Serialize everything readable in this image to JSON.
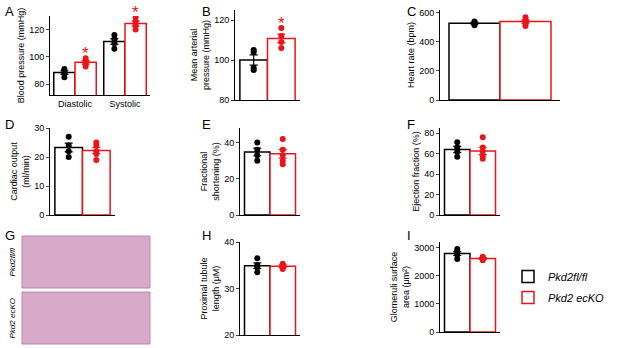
{
  "chart_data": [
    {
      "type": "bar",
      "title": "A",
      "ylabel": "Blood pressure (mmHg)",
      "categories": [
        "Diastolic",
        "Systolic"
      ],
      "ylim": [
        72,
        130
      ],
      "yticks": [
        80,
        100,
        120
      ],
      "legend": "bottom right",
      "series": [
        {
          "name": "Pkd2fl/fl",
          "color": "#000000",
          "values": [
            88.5,
            111.3
          ],
          "errors": [
            1.3,
            2.1
          ],
          "points": [
            [
              85,
              88,
              90,
              91
            ],
            [
              106,
              110,
              113,
              116
            ]
          ]
        },
        {
          "name": "Pkd2 ecKO",
          "color": "#e8161b",
          "values": [
            96,
            124.5
          ],
          "errors": [
            1.3,
            1.9
          ],
          "points": [
            [
              93,
              95,
              97,
              99
            ],
            [
              120,
              123,
              126,
              129
            ]
          ],
          "significance": [
            "*",
            "*"
          ]
        }
      ]
    },
    {
      "type": "bar",
      "title": "B",
      "ylabel": "Mean arterial pressure (mmHg)",
      "categories": [
        null
      ],
      "ylim": [
        80,
        125
      ],
      "yticks": [
        80,
        100,
        120
      ],
      "series": [
        {
          "name": "Pkd2fl/fl",
          "color": "#000000",
          "values": [
            100
          ],
          "errors": [
            2.6
          ],
          "points": [
            [
              95,
              96,
              104,
              105
            ]
          ]
        },
        {
          "name": "Pkd2 ecKO",
          "color": "#e8161b",
          "values": [
            110.8
          ],
          "errors": [
            2.1
          ],
          "points": [
            [
              106,
              109,
              112,
              116
            ]
          ],
          "significance": [
            "*"
          ]
        }
      ]
    },
    {
      "type": "bar",
      "title": "C",
      "ylabel": "Heart rate (bpm)",
      "categories": [
        null
      ],
      "ylim": [
        0,
        620
      ],
      "yticks": [
        0,
        200,
        400,
        600
      ],
      "series": [
        {
          "name": "Pkd2fl/fl",
          "color": "#000000",
          "values": [
            529
          ],
          "errors": [
            6
          ],
          "points": [
            [
              515,
              525,
              535,
              540
            ]
          ]
        },
        {
          "name": "Pkd2 ecKO",
          "color": "#e8161b",
          "values": [
            540
          ],
          "errors": [
            10
          ],
          "points": [
            [
              510,
              525,
              540,
              555,
              570
            ]
          ]
        }
      ]
    },
    {
      "type": "bar",
      "title": "D",
      "ylabel": "Cardiac output (ml/min)",
      "categories": [
        null
      ],
      "ylim": [
        0,
        30
      ],
      "yticks": [
        0,
        10,
        20,
        30
      ],
      "series": [
        {
          "name": "Pkd2fl/fl",
          "color": "#000000",
          "values": [
            23.3
          ],
          "errors": [
            1.5
          ],
          "points": [
            [
              20,
              22,
              24,
              27
            ]
          ]
        },
        {
          "name": "Pkd2 ecKO",
          "color": "#e8161b",
          "values": [
            22.2
          ],
          "errors": [
            1
          ],
          "points": [
            [
              19,
              21,
              22,
              24,
              25
            ]
          ]
        }
      ]
    },
    {
      "type": "bar",
      "title": "E",
      "ylabel": "Fractional shortening (%)",
      "categories": [
        null
      ],
      "ylim": [
        0,
        48
      ],
      "yticks": [
        0,
        20,
        40
      ],
      "series": [
        {
          "name": "Pkd2fl/fl",
          "color": "#000000",
          "values": [
            34.8
          ],
          "errors": [
            2.1
          ],
          "points": [
            [
              30,
              33,
              36,
              40
            ]
          ]
        },
        {
          "name": "Pkd2 ecKO",
          "color": "#e8161b",
          "values": [
            33.8
          ],
          "errors": [
            2.4
          ],
          "points": [
            [
              28,
              30,
              33,
              36,
              42
            ]
          ]
        }
      ]
    },
    {
      "type": "bar",
      "title": "F",
      "ylabel": "Ejection fraction (%)",
      "categories": [
        null
      ],
      "ylim": [
        0,
        85
      ],
      "yticks": [
        0,
        20,
        40,
        60,
        80
      ],
      "series": [
        {
          "name": "Pkd2fl/fl",
          "color": "#000000",
          "values": [
            64
          ],
          "errors": [
            3
          ],
          "points": [
            [
              57,
              62,
              66,
              71
            ]
          ]
        },
        {
          "name": "Pkd2 ecKO",
          "color": "#e8161b",
          "values": [
            62.6
          ],
          "errors": [
            3.6
          ],
          "points": [
            [
              55,
              58,
              62,
              66,
              76
            ]
          ]
        }
      ]
    },
    {
      "type": "image",
      "title": "G",
      "labels": [
        "Pkd2fl/fl",
        "Pkd2 ecKO"
      ]
    },
    {
      "type": "bar",
      "title": "H",
      "ylabel": "Proximal tubule length (μM)",
      "categories": [
        null
      ],
      "ylim": [
        20,
        40
      ],
      "yticks": [
        20,
        30,
        40
      ],
      "series": [
        {
          "name": "Pkd2fl/fl",
          "color": "#000000",
          "values": [
            34.9
          ],
          "errors": [
            0.6
          ],
          "points": [
            [
              33.5,
              34.5,
              35,
              36.5
            ]
          ]
        },
        {
          "name": "Pkd2 ecKO",
          "color": "#e8161b",
          "values": [
            34.8
          ],
          "errors": [
            0.3
          ],
          "points": [
            [
              34.2,
              34.6,
              35,
              35.3
            ]
          ]
        }
      ]
    },
    {
      "type": "bar",
      "title": "I",
      "ylabel": "Glomeruli surface area (μm²)",
      "categories": [
        null
      ],
      "ylim": [
        0,
        3200
      ],
      "yticks": [
        0,
        1000,
        2000,
        3000
      ],
      "series": [
        {
          "name": "Pkd2fl/fl",
          "color": "#000000",
          "values": [
            2790
          ],
          "errors": [
            70
          ],
          "points": [
            [
              2600,
              2750,
              2850,
              2950
            ]
          ]
        },
        {
          "name": "Pkd2 ecKO",
          "color": "#e8161b",
          "values": [
            2612
          ],
          "errors": [
            30
          ],
          "points": [
            [
              2550,
              2600,
              2620,
              2680
            ]
          ]
        }
      ]
    }
  ]
}
